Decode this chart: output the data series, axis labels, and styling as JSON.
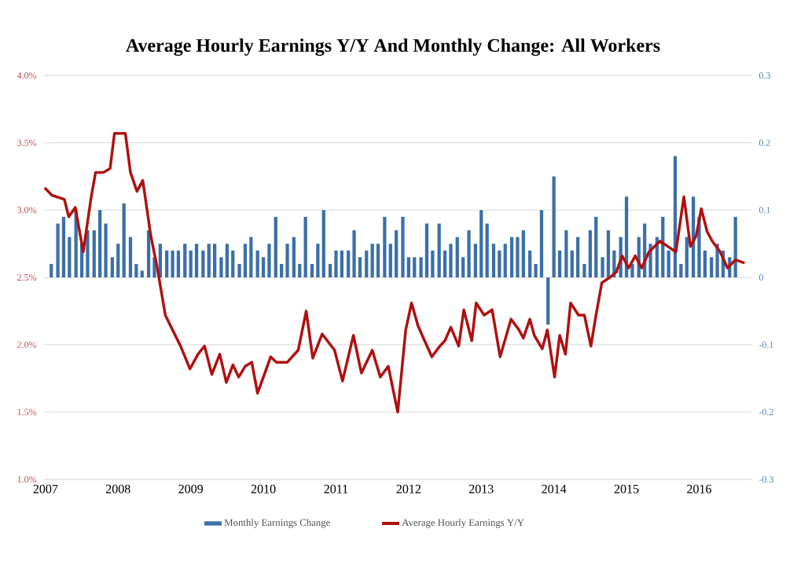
{
  "chart_data": {
    "type": "bar",
    "title": "Average Hourly Earnings Y/Y And Monthly Change: All Workers",
    "xlim": [
      2006.98,
      2016.72
    ],
    "xticks": [
      2007,
      2008,
      2009,
      2010,
      2011,
      2012,
      2013,
      2014,
      2015,
      2016
    ],
    "ylim": [
      1.0,
      4.0
    ],
    "yticks": [
      {
        "value": 1.0,
        "label": "1.0%"
      },
      {
        "value": 1.5,
        "label": "1.5%"
      },
      {
        "value": 2.0,
        "label": "2.0%"
      },
      {
        "value": 2.5,
        "label": "2.5%"
      },
      {
        "value": 3.0,
        "label": "3.0%"
      },
      {
        "value": 3.5,
        "label": "3.5%"
      },
      {
        "value": 4.0,
        "label": "4.0%"
      }
    ],
    "y2lim": [
      -0.3,
      0.3
    ],
    "y2ticks": [
      -0.3,
      -0.2,
      -0.1,
      0,
      0.1,
      0.2,
      0.3
    ],
    "grid": "y",
    "legend": "bottom",
    "series": [
      {
        "name": "Monthly Earnings Change",
        "axis": "y2",
        "color": "#3b6fa8",
        "x": [
          2007.08,
          2007.17,
          2007.25,
          2007.33,
          2007.42,
          2007.5,
          2007.58,
          2007.67,
          2007.75,
          2007.83,
          2007.92,
          2008.0,
          2008.08,
          2008.17,
          2008.25,
          2008.33,
          2008.42,
          2008.5,
          2008.58,
          2008.67,
          2008.75,
          2008.83,
          2008.92,
          2009.0,
          2009.08,
          2009.17,
          2009.25,
          2009.33,
          2009.42,
          2009.5,
          2009.58,
          2009.67,
          2009.75,
          2009.83,
          2009.92,
          2010.0,
          2010.08,
          2010.17,
          2010.25,
          2010.33,
          2010.42,
          2010.5,
          2010.58,
          2010.67,
          2010.75,
          2010.83,
          2010.92,
          2011.0,
          2011.08,
          2011.17,
          2011.25,
          2011.33,
          2011.42,
          2011.5,
          2011.58,
          2011.67,
          2011.75,
          2011.83,
          2011.92,
          2012.0,
          2012.08,
          2012.17,
          2012.25,
          2012.33,
          2012.42,
          2012.5,
          2012.58,
          2012.67,
          2012.75,
          2012.83,
          2012.92,
          2013.0,
          2013.08,
          2013.17,
          2013.25,
          2013.33,
          2013.42,
          2013.5,
          2013.58,
          2013.67,
          2013.75,
          2013.83,
          2013.92,
          2014.0,
          2014.08,
          2014.17,
          2014.25,
          2014.33,
          2014.42,
          2014.5,
          2014.58,
          2014.67,
          2014.75,
          2014.83,
          2014.92,
          2015.0,
          2015.08,
          2015.17,
          2015.25,
          2015.33,
          2015.42,
          2015.5,
          2015.58,
          2015.67,
          2015.75,
          2015.83,
          2015.92,
          2016.0,
          2016.08,
          2016.17,
          2016.25,
          2016.33,
          2016.42,
          2016.5
        ],
        "values": [
          0.02,
          0.08,
          0.09,
          0.06,
          0.1,
          0.05,
          0.07,
          0.07,
          0.1,
          0.08,
          0.03,
          0.05,
          0.11,
          0.06,
          0.02,
          0.01,
          0.07,
          0.03,
          0.05,
          0.04,
          0.04,
          0.04,
          0.05,
          0.04,
          0.05,
          0.04,
          0.05,
          0.05,
          0.03,
          0.05,
          0.04,
          0.02,
          0.05,
          0.06,
          0.04,
          0.03,
          0.05,
          0.09,
          0.02,
          0.05,
          0.06,
          0.02,
          0.09,
          0.02,
          0.05,
          0.1,
          0.02,
          0.04,
          0.04,
          0.04,
          0.07,
          0.03,
          0.04,
          0.05,
          0.05,
          0.09,
          0.05,
          0.07,
          0.09,
          0.03,
          0.03,
          0.03,
          0.08,
          0.04,
          0.08,
          0.04,
          0.05,
          0.06,
          0.03,
          0.07,
          0.05,
          0.1,
          0.08,
          0.05,
          0.04,
          0.05,
          0.06,
          0.06,
          0.07,
          0.04,
          0.02,
          0.1,
          -0.07,
          0.15,
          0.04,
          0.07,
          0.04,
          0.06,
          0.02,
          0.07,
          0.09,
          0.03,
          0.07,
          0.04,
          0.06,
          0.12,
          0.02,
          0.06,
          0.08,
          0.05,
          0.06,
          0.09,
          0.04,
          0.18,
          0.02,
          0.06,
          0.12,
          0.09,
          0.04,
          0.03,
          0.05,
          0.04,
          0.03,
          0.09
        ]
      },
      {
        "name": "Average Hourly Earnings Y/Y",
        "type": "line",
        "color": "#b01010",
        "x": [
          2007.0,
          2007.09,
          2007.26,
          2007.32,
          2007.41,
          2007.52,
          2007.63,
          2007.69,
          2007.8,
          2007.89,
          2007.95,
          2008.1,
          2008.17,
          2008.26,
          2008.34,
          2008.45,
          2008.54,
          2008.65,
          2008.86,
          2008.99,
          2009.1,
          2009.19,
          2009.29,
          2009.4,
          2009.49,
          2009.58,
          2009.66,
          2009.75,
          2009.84,
          2009.92,
          2010.1,
          2010.18,
          2010.33,
          2010.48,
          2010.59,
          2010.68,
          2010.81,
          2010.98,
          2011.09,
          2011.24,
          2011.35,
          2011.5,
          2011.61,
          2011.72,
          2011.85,
          2011.96,
          2012.04,
          2012.13,
          2012.22,
          2012.32,
          2012.43,
          2012.5,
          2012.58,
          2012.69,
          2012.76,
          2012.87,
          2012.93,
          2013.04,
          2013.15,
          2013.26,
          2013.41,
          2013.52,
          2013.58,
          2013.67,
          2013.73,
          2013.84,
          2013.91,
          2014.01,
          2014.08,
          2014.16,
          2014.23,
          2014.34,
          2014.42,
          2014.51,
          2014.58,
          2014.66,
          2014.77,
          2014.86,
          2014.94,
          2015.03,
          2015.12,
          2015.21,
          2015.31,
          2015.46,
          2015.57,
          2015.68,
          2015.79,
          2015.88,
          2015.96,
          2016.03,
          2016.11,
          2016.18,
          2016.29,
          2016.39,
          2016.5,
          2016.61
        ],
        "values": [
          3.16,
          3.11,
          3.08,
          2.95,
          3.02,
          2.69,
          3.1,
          3.28,
          3.28,
          3.31,
          3.57,
          3.57,
          3.28,
          3.14,
          3.22,
          2.81,
          2.57,
          2.22,
          1.99,
          1.82,
          1.93,
          1.99,
          1.78,
          1.93,
          1.72,
          1.85,
          1.76,
          1.84,
          1.87,
          1.64,
          1.91,
          1.87,
          1.87,
          1.96,
          2.25,
          1.9,
          2.08,
          1.96,
          1.73,
          2.07,
          1.79,
          1.96,
          1.76,
          1.84,
          1.5,
          2.11,
          2.31,
          2.14,
          2.03,
          1.91,
          1.99,
          2.03,
          2.13,
          1.99,
          2.26,
          2.03,
          2.31,
          2.22,
          2.26,
          1.91,
          2.19,
          2.11,
          2.05,
          2.19,
          2.07,
          1.97,
          2.11,
          1.76,
          2.07,
          1.93,
          2.31,
          2.22,
          2.22,
          1.99,
          2.22,
          2.46,
          2.5,
          2.54,
          2.66,
          2.57,
          2.66,
          2.57,
          2.69,
          2.77,
          2.73,
          2.69,
          3.1,
          2.73,
          2.81,
          3.01,
          2.84,
          2.77,
          2.69,
          2.57,
          2.63,
          2.61
        ]
      }
    ]
  }
}
